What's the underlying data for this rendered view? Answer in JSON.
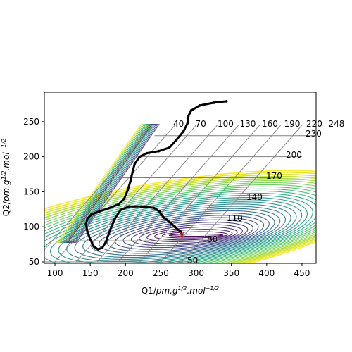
{
  "chart_data": {
    "type": "contour",
    "xlabel": "Q1/pm.g^1/2.mol^-1/2",
    "ylabel": "Q2/pm.g^1/2.mol^-1/2",
    "xlim": [
      85,
      470
    ],
    "ylim": [
      48,
      292
    ],
    "x_ticks": [
      100,
      150,
      200,
      250,
      300,
      350,
      400,
      450
    ],
    "y_ticks": [
      50,
      100,
      150,
      200,
      250
    ],
    "skewed_axis_labels_top": [
      "40",
      "70",
      "100",
      "130",
      "160",
      "190",
      "220",
      "248"
    ],
    "skewed_axis_labels_right": [
      "50",
      "80",
      "110",
      "140",
      "170",
      "200",
      "230"
    ],
    "grid": true,
    "colormap": "viridis",
    "contour_levels": 30,
    "well_center": [
      300,
      88
    ],
    "marker": {
      "symbol": "×",
      "x": 280,
      "y": 89,
      "color": "#ff2020"
    },
    "trajectory": [
      [
        343,
        279
      ],
      [
        325,
        277
      ],
      [
        305,
        273
      ],
      [
        293,
        266
      ],
      [
        289,
        258
      ],
      [
        288,
        248
      ],
      [
        282,
        236
      ],
      [
        272,
        224
      ],
      [
        262,
        213
      ],
      [
        247,
        208
      ],
      [
        230,
        205
      ],
      [
        220,
        200
      ],
      [
        213,
        190
      ],
      [
        210,
        178
      ],
      [
        207,
        165
      ],
      [
        203,
        152
      ],
      [
        198,
        140
      ],
      [
        190,
        132
      ],
      [
        180,
        128
      ],
      [
        172,
        125
      ],
      [
        163,
        122
      ],
      [
        152,
        118
      ],
      [
        146,
        112
      ],
      [
        144,
        104
      ],
      [
        146,
        93
      ],
      [
        150,
        82
      ],
      [
        155,
        72
      ],
      [
        161,
        68
      ],
      [
        167,
        70
      ],
      [
        172,
        78
      ],
      [
        178,
        95
      ],
      [
        185,
        112
      ],
      [
        193,
        124
      ],
      [
        205,
        129
      ],
      [
        222,
        129
      ],
      [
        240,
        127
      ],
      [
        248,
        122
      ],
      [
        251,
        117
      ],
      [
        255,
        113
      ],
      [
        262,
        107
      ],
      [
        270,
        100
      ],
      [
        278,
        93
      ],
      [
        280,
        89
      ]
    ]
  }
}
